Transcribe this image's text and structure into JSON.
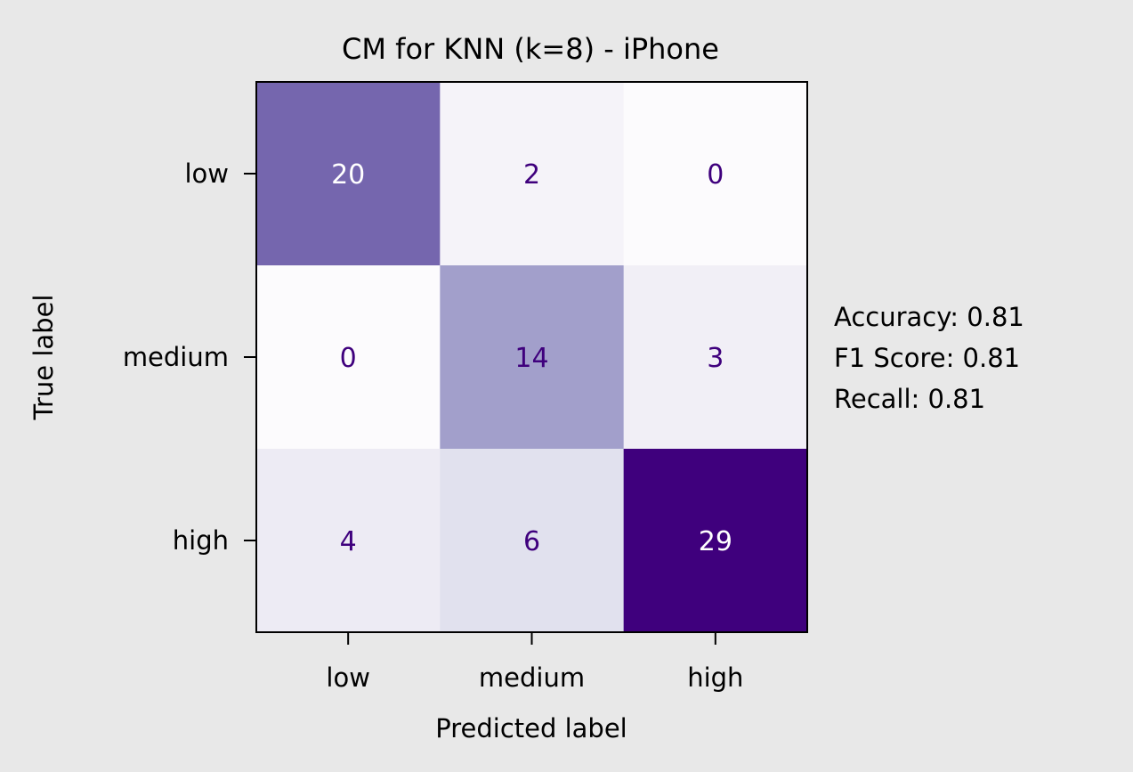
{
  "chart_data": {
    "type": "heatmap",
    "title": "CM for KNN (k=8) - iPhone",
    "xlabel": "Predicted label",
    "ylabel": "True label",
    "x_categories": [
      "low",
      "medium",
      "high"
    ],
    "y_categories": [
      "low",
      "medium",
      "high"
    ],
    "matrix": [
      [
        20,
        2,
        0
      ],
      [
        0,
        14,
        3
      ],
      [
        4,
        6,
        29
      ]
    ],
    "colormap": "Purples",
    "value_range": [
      0,
      29
    ],
    "colorbar": false,
    "grid": false,
    "metrics": [
      "Accuracy: 0.81",
      "F1 Score: 0.81",
      "Recall: 0.81"
    ]
  },
  "colors": {
    "background": "#e8e8e8",
    "axis": "#000000",
    "text": "#000000",
    "low_value_text": "#3f007d",
    "high_value_text": "#ffffff"
  }
}
